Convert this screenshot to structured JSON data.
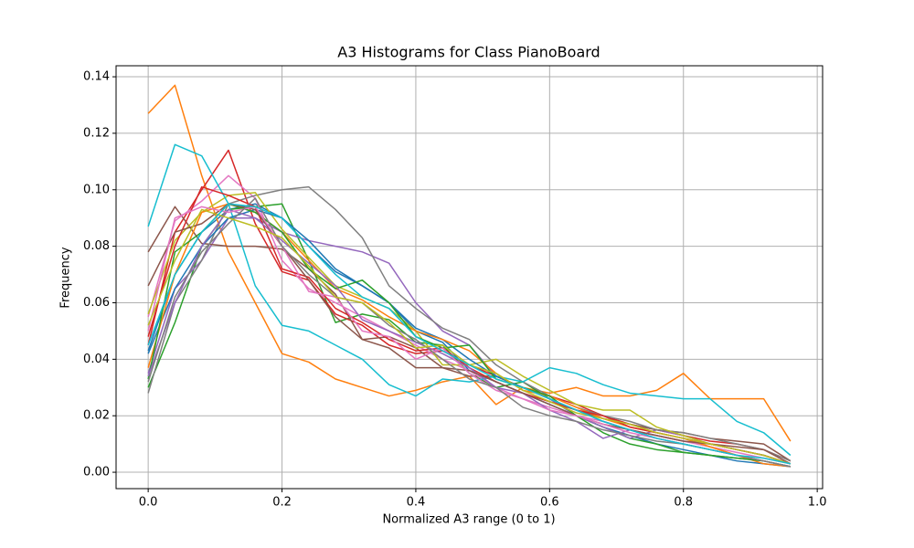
{
  "chart_data": {
    "type": "line",
    "title": "A3 Histograms for Class PianoBoard",
    "x_label": "Normalized A3 range (0 to 1)",
    "y_label": "Frequency",
    "x": [
      0,
      0.04,
      0.08,
      0.12,
      0.16,
      0.2,
      0.24,
      0.28,
      0.32,
      0.36,
      0.4,
      0.44,
      0.48,
      0.52,
      0.56,
      0.6,
      0.64,
      0.68,
      0.72,
      0.76,
      0.8,
      0.84,
      0.88,
      0.92,
      0.96
    ],
    "xlim": [
      -0.048,
      1.008
    ],
    "ylim": [
      -0.0058,
      0.1439
    ],
    "xticks": [
      {
        "value": 0,
        "label": "0.0"
      },
      0.2,
      0.4,
      0.6,
      0.8,
      {
        "value": 1,
        "label": "1.0"
      }
    ],
    "yticks": [
      {
        "value": 0,
        "label": "0.00"
      },
      0.02,
      0.04,
      0.06,
      0.08,
      {
        "value": 0.1,
        "label": "0.10"
      },
      0.12,
      0.14
    ],
    "grid": true,
    "series": [
      {
        "color": "#1f77b4",
        "values": [
          0.043,
          0.07,
          0.085,
          0.093,
          0.095,
          0.09,
          0.08,
          0.071,
          0.066,
          0.06,
          0.05,
          0.046,
          0.036,
          0.032,
          0.028,
          0.024,
          0.02,
          0.016,
          0.013,
          0.01,
          0.008,
          0.006,
          0.004,
          0.003,
          0.002
        ]
      },
      {
        "color": "#ff7f0e",
        "values": [
          0.127,
          0.137,
          0.105,
          0.078,
          0.06,
          0.042,
          0.039,
          0.033,
          0.03,
          0.027,
          0.029,
          0.032,
          0.034,
          0.024,
          0.03,
          0.028,
          0.03,
          0.027,
          0.027,
          0.029,
          0.035,
          0.026,
          0.026,
          0.026,
          0.011
        ]
      },
      {
        "color": "#2ca02c",
        "values": [
          0.03,
          0.053,
          0.08,
          0.093,
          0.094,
          0.095,
          0.075,
          0.053,
          0.056,
          0.054,
          0.046,
          0.045,
          0.035,
          0.03,
          0.032,
          0.026,
          0.02,
          0.016,
          0.012,
          0.01,
          0.007,
          0.006,
          0.005,
          0.004,
          0.002
        ]
      },
      {
        "color": "#d62728",
        "values": [
          0.045,
          0.085,
          0.1,
          0.114,
          0.088,
          0.071,
          0.068,
          0.056,
          0.052,
          0.045,
          0.042,
          0.043,
          0.038,
          0.034,
          0.03,
          0.027,
          0.024,
          0.02,
          0.017,
          0.015,
          0.013,
          0.011,
          0.01,
          0.008,
          0.004
        ]
      },
      {
        "color": "#9467bd",
        "values": [
          0.035,
          0.065,
          0.075,
          0.09,
          0.09,
          0.085,
          0.082,
          0.08,
          0.078,
          0.074,
          0.06,
          0.05,
          0.045,
          0.034,
          0.03,
          0.026,
          0.02,
          0.016,
          0.012,
          0.015,
          0.013,
          0.01,
          0.008,
          0.006,
          0.003
        ]
      },
      {
        "color": "#8c564b",
        "values": [
          0.078,
          0.094,
          0.081,
          0.08,
          0.08,
          0.079,
          0.072,
          0.063,
          0.047,
          0.048,
          0.044,
          0.037,
          0.034,
          0.034,
          0.03,
          0.026,
          0.022,
          0.019,
          0.017,
          0.015,
          0.014,
          0.012,
          0.011,
          0.01,
          0.004
        ]
      },
      {
        "color": "#e377c2",
        "values": [
          0.055,
          0.089,
          0.096,
          0.105,
          0.097,
          0.075,
          0.065,
          0.06,
          0.055,
          0.05,
          0.045,
          0.04,
          0.036,
          0.03,
          0.026,
          0.023,
          0.02,
          0.018,
          0.015,
          0.013,
          0.011,
          0.009,
          0.007,
          0.005,
          0.003
        ]
      },
      {
        "color": "#7f7f7f",
        "values": [
          0.028,
          0.06,
          0.075,
          0.095,
          0.098,
          0.1,
          0.101,
          0.093,
          0.083,
          0.066,
          0.058,
          0.051,
          0.047,
          0.038,
          0.032,
          0.027,
          0.023,
          0.02,
          0.018,
          0.015,
          0.014,
          0.012,
          0.01,
          0.008,
          0.004
        ]
      },
      {
        "color": "#bcbd22",
        "values": [
          0.056,
          0.082,
          0.092,
          0.098,
          0.099,
          0.086,
          0.076,
          0.066,
          0.062,
          0.058,
          0.05,
          0.038,
          0.038,
          0.04,
          0.034,
          0.029,
          0.024,
          0.022,
          0.022,
          0.016,
          0.013,
          0.01,
          0.008,
          0.006,
          0.003
        ]
      },
      {
        "color": "#17becf",
        "values": [
          0.087,
          0.116,
          0.112,
          0.095,
          0.066,
          0.052,
          0.05,
          0.045,
          0.04,
          0.031,
          0.027,
          0.033,
          0.032,
          0.034,
          0.032,
          0.037,
          0.035,
          0.031,
          0.028,
          0.027,
          0.026,
          0.026,
          0.018,
          0.014,
          0.006
        ]
      },
      {
        "color": "#1f77b4",
        "values": [
          0.042,
          0.065,
          0.08,
          0.09,
          0.093,
          0.09,
          0.082,
          0.072,
          0.066,
          0.06,
          0.051,
          0.047,
          0.04,
          0.034,
          0.03,
          0.026,
          0.022,
          0.018,
          0.015,
          0.012,
          0.01,
          0.008,
          0.006,
          0.004,
          0.002
        ]
      },
      {
        "color": "#ff7f0e",
        "values": [
          0.037,
          0.07,
          0.092,
          0.095,
          0.092,
          0.085,
          0.075,
          0.065,
          0.061,
          0.055,
          0.05,
          0.047,
          0.043,
          0.035,
          0.029,
          0.027,
          0.023,
          0.019,
          0.016,
          0.014,
          0.012,
          0.009,
          0.006,
          0.003,
          0.002
        ]
      },
      {
        "color": "#2ca02c",
        "values": [
          0.033,
          0.078,
          0.085,
          0.095,
          0.092,
          0.085,
          0.072,
          0.065,
          0.068,
          0.06,
          0.048,
          0.044,
          0.045,
          0.033,
          0.03,
          0.027,
          0.02,
          0.014,
          0.01,
          0.008,
          0.007,
          0.006,
          0.005,
          0.004,
          0.002
        ]
      },
      {
        "color": "#d62728",
        "values": [
          0.048,
          0.08,
          0.101,
          0.098,
          0.094,
          0.072,
          0.069,
          0.058,
          0.053,
          0.047,
          0.043,
          0.044,
          0.037,
          0.032,
          0.028,
          0.025,
          0.022,
          0.02,
          0.016,
          0.014,
          0.012,
          0.01,
          0.008,
          0.006,
          0.003
        ]
      },
      {
        "color": "#9467bd",
        "values": [
          0.034,
          0.06,
          0.08,
          0.093,
          0.09,
          0.082,
          0.074,
          0.066,
          0.054,
          0.05,
          0.046,
          0.042,
          0.037,
          0.03,
          0.028,
          0.022,
          0.018,
          0.012,
          0.015,
          0.013,
          0.011,
          0.01,
          0.008,
          0.006,
          0.003
        ]
      },
      {
        "color": "#8c564b",
        "values": [
          0.066,
          0.085,
          0.088,
          0.095,
          0.093,
          0.08,
          0.068,
          0.055,
          0.047,
          0.044,
          0.037,
          0.037,
          0.036,
          0.032,
          0.028,
          0.024,
          0.02,
          0.017,
          0.015,
          0.013,
          0.011,
          0.01,
          0.009,
          0.008,
          0.003
        ]
      },
      {
        "color": "#e377c2",
        "values": [
          0.05,
          0.09,
          0.094,
          0.092,
          0.094,
          0.08,
          0.064,
          0.062,
          0.05,
          0.048,
          0.04,
          0.044,
          0.035,
          0.029,
          0.026,
          0.022,
          0.02,
          0.017,
          0.014,
          0.012,
          0.01,
          0.008,
          0.006,
          0.004,
          0.002
        ]
      },
      {
        "color": "#7f7f7f",
        "values": [
          0.032,
          0.062,
          0.078,
          0.088,
          0.097,
          0.08,
          0.07,
          0.062,
          0.06,
          0.052,
          0.047,
          0.04,
          0.033,
          0.03,
          0.023,
          0.02,
          0.018,
          0.015,
          0.013,
          0.011,
          0.01,
          0.008,
          0.006,
          0.004,
          0.002
        ]
      },
      {
        "color": "#bcbd22",
        "values": [
          0.052,
          0.075,
          0.093,
          0.09,
          0.087,
          0.083,
          0.073,
          0.062,
          0.06,
          0.053,
          0.044,
          0.045,
          0.038,
          0.035,
          0.029,
          0.025,
          0.021,
          0.019,
          0.017,
          0.014,
          0.012,
          0.01,
          0.008,
          0.006,
          0.003
        ]
      },
      {
        "color": "#17becf",
        "values": [
          0.045,
          0.07,
          0.085,
          0.095,
          0.094,
          0.09,
          0.08,
          0.07,
          0.062,
          0.058,
          0.048,
          0.043,
          0.038,
          0.033,
          0.03,
          0.026,
          0.022,
          0.018,
          0.015,
          0.012,
          0.01,
          0.008,
          0.006,
          0.005,
          0.003
        ]
      }
    ]
  }
}
